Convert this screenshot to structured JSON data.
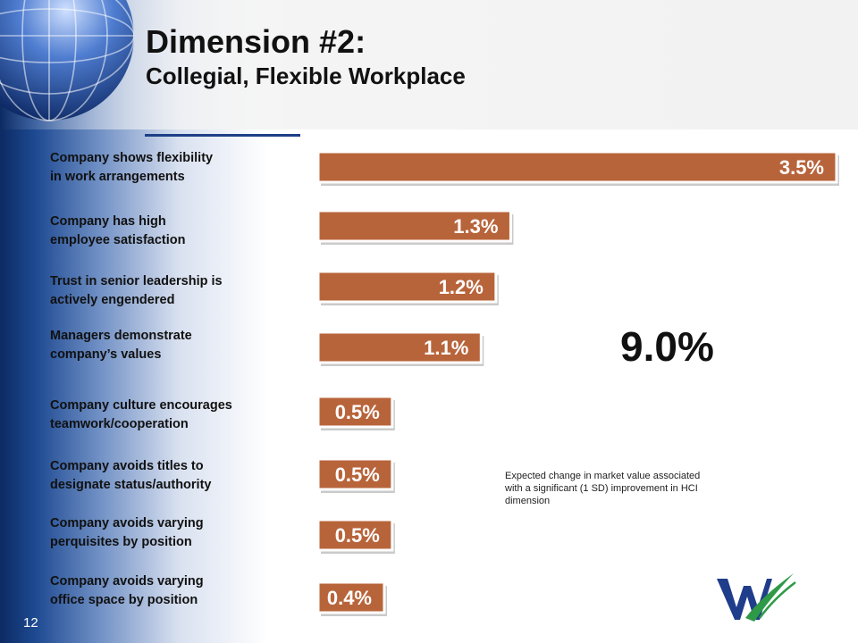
{
  "slide": {
    "title": "Dimension #2:",
    "subtitle": "Collegial, Flexible Workplace",
    "slide_number": "12",
    "total_value": "9.0%",
    "note": "Expected change in market value associated with a significant (1 SD) improvement in HCI dimension"
  },
  "colors": {
    "bar_fill": "#b8643b",
    "bar_border": "#ffffff",
    "bar_text": "#ffffff",
    "panel_blue": "#1e4a92",
    "rule_blue": "#1d3f86"
  },
  "chart_data": {
    "type": "bar",
    "orientation": "horizontal",
    "categories": [
      "Company shows flexibility in work arrangements",
      "Company has high employee satisfaction",
      "Trust in senior leadership is actively engendered",
      "Managers demonstrate company’s values",
      "Company culture encourages teamwork/cooperation",
      "Company avoids titles to designate status/authority",
      "Company avoids varying perquisites by position",
      "Company avoids varying office space by position"
    ],
    "category_lines": [
      [
        "Company  shows  flexibility",
        "in  work  arrangements"
      ],
      [
        "Company  has  high",
        "employee  satisfaction"
      ],
      [
        "Trust  in  senior  leadership  is",
        "actively  engendered"
      ],
      [
        "Managers  demonstrate",
        "company’s  values"
      ],
      [
        "Company  culture  encourages",
        "teamwork/cooperation"
      ],
      [
        "Company  avoids  titles  to",
        "designate  status/authority"
      ],
      [
        "Company  avoids  varying",
        "perquisites  by  position"
      ],
      [
        "Company  avoids  varying",
        "office space  by  position"
      ]
    ],
    "values": [
      3.5,
      1.3,
      1.2,
      1.1,
      0.5,
      0.5,
      0.5,
      0.4
    ],
    "value_labels": [
      "3.5%",
      "1.3%",
      "1.2%",
      "1.1%",
      "0.5%",
      "0.5%",
      "0.5%",
      "0.4%"
    ],
    "unit": "%",
    "xlim": [
      0,
      3.5
    ],
    "grid": false,
    "legend": "none"
  }
}
